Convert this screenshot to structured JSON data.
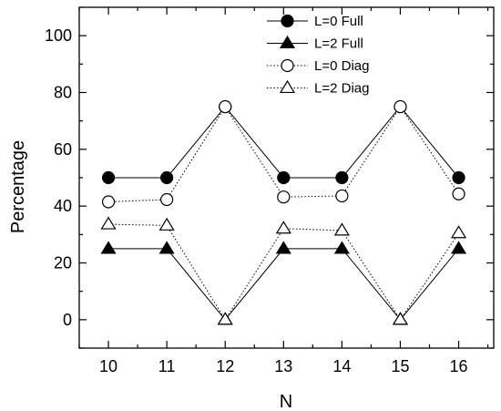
{
  "chart_data": {
    "type": "line",
    "title": "",
    "xlabel": "N",
    "ylabel": "Percentage",
    "x": [
      10,
      11,
      12,
      13,
      14,
      15,
      16
    ],
    "xlim": [
      9.5,
      16.6
    ],
    "ylim": [
      -10,
      110
    ],
    "xticks": [
      "10",
      "11",
      "12",
      "13",
      "14",
      "15",
      "16"
    ],
    "yticks": [
      "0",
      "20",
      "40",
      "60",
      "80",
      "100"
    ],
    "grid": false,
    "legend_position": "top-right",
    "series": [
      {
        "name": "L=0 Full",
        "values": [
          50,
          50,
          75,
          50,
          50,
          75,
          50
        ],
        "marker": "filled-circle",
        "line": "solid"
      },
      {
        "name": "L=2 Full",
        "values": [
          25,
          25,
          0,
          25,
          25,
          0,
          25
        ],
        "marker": "filled-triangle",
        "line": "solid"
      },
      {
        "name": "L=0 Diag",
        "values": [
          41.5,
          42.3,
          75,
          43.2,
          43.6,
          75,
          44.3
        ],
        "marker": "open-circle",
        "line": "dotted"
      },
      {
        "name": "L=2 Diag",
        "values": [
          33.6,
          33.2,
          0,
          32.1,
          31.4,
          0,
          30.5
        ],
        "marker": "open-triangle",
        "line": "dotted"
      }
    ]
  }
}
